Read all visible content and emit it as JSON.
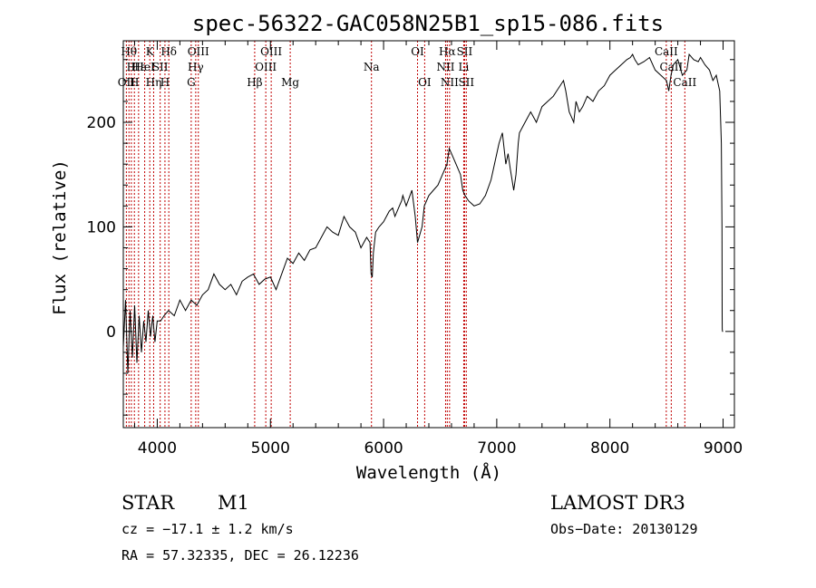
{
  "chart_data": {
    "type": "line",
    "title": "spec-56322-GAC058N25B1_sp15-086.fits",
    "xlabel": "Wavelength (Å)",
    "ylabel": "Flux (relative)",
    "xlim": [
      3700,
      9100
    ],
    "ylim": [
      -92,
      278
    ],
    "xticks": [
      4000,
      5000,
      6000,
      7000,
      8000,
      9000
    ],
    "yticks": [
      0,
      100,
      200
    ],
    "series": [
      {
        "name": "flux",
        "x": [
          3700,
          3720,
          3740,
          3760,
          3780,
          3800,
          3820,
          3840,
          3860,
          3880,
          3900,
          3920,
          3940,
          3960,
          3980,
          4000,
          4030,
          4060,
          4100,
          4150,
          4200,
          4250,
          4300,
          4350,
          4400,
          4450,
          4500,
          4550,
          4600,
          4650,
          4700,
          4750,
          4800,
          4850,
          4900,
          4950,
          5000,
          5050,
          5100,
          5150,
          5200,
          5250,
          5300,
          5350,
          5400,
          5450,
          5500,
          5550,
          5600,
          5650,
          5700,
          5750,
          5800,
          5850,
          5880,
          5890,
          5900,
          5910,
          5930,
          5960,
          6000,
          6050,
          6080,
          6100,
          6140,
          6160,
          6170,
          6200,
          6250,
          6280,
          6300,
          6340,
          6360,
          6400,
          6440,
          6480,
          6520,
          6560,
          6580,
          6600,
          6640,
          6680,
          6700,
          6720,
          6750,
          6800,
          6850,
          6900,
          6950,
          7000,
          7020,
          7050,
          7080,
          7100,
          7120,
          7150,
          7170,
          7190,
          7200,
          7250,
          7300,
          7350,
          7400,
          7450,
          7500,
          7530,
          7560,
          7590,
          7610,
          7640,
          7660,
          7680,
          7700,
          7730,
          7760,
          7800,
          7850,
          7900,
          7950,
          8000,
          8050,
          8100,
          8150,
          8180,
          8200,
          8220,
          8250,
          8300,
          8350,
          8400,
          8450,
          8500,
          8520,
          8540,
          8560,
          8600,
          8640,
          8680,
          8700,
          8740,
          8780,
          8800,
          8840,
          8880,
          8910,
          8940,
          8970,
          8985,
          8990,
          8992,
          8993,
          8995,
          9000
        ],
        "values": [
          -15,
          30,
          -40,
          20,
          -25,
          25,
          -30,
          15,
          -20,
          10,
          -10,
          20,
          -5,
          15,
          -10,
          10,
          10,
          15,
          20,
          15,
          30,
          20,
          30,
          25,
          35,
          40,
          55,
          45,
          40,
          45,
          35,
          48,
          52,
          55,
          45,
          50,
          52,
          40,
          55,
          70,
          65,
          75,
          68,
          78,
          80,
          90,
          100,
          95,
          92,
          110,
          100,
          95,
          80,
          90,
          85,
          55,
          52,
          75,
          95,
          100,
          105,
          115,
          118,
          110,
          120,
          125,
          130,
          120,
          135,
          110,
          85,
          100,
          120,
          130,
          135,
          140,
          150,
          160,
          175,
          170,
          160,
          150,
          135,
          130,
          125,
          120,
          122,
          130,
          145,
          170,
          180,
          190,
          160,
          170,
          155,
          135,
          150,
          180,
          190,
          200,
          210,
          200,
          215,
          220,
          225,
          230,
          235,
          240,
          230,
          210,
          205,
          200,
          220,
          210,
          215,
          225,
          220,
          230,
          235,
          245,
          250,
          255,
          260,
          262,
          265,
          260,
          255,
          258,
          262,
          250,
          245,
          240,
          230,
          245,
          255,
          260,
          245,
          250,
          265,
          260,
          258,
          262,
          255,
          250,
          240,
          245,
          230,
          180,
          100,
          15,
          2,
          0,
          0
        ],
        "color": "#000000"
      }
    ],
    "line_markers": [
      {
        "wavelength": 3727,
        "top": "OII",
        "bottom": "OII",
        "row": 2
      },
      {
        "wavelength": 3750,
        "top": "Hθ",
        "row": 0
      },
      {
        "wavelength": 3771,
        "top": "H",
        "row": 1
      },
      {
        "wavelength": 3798,
        "top": "H",
        "row": 2
      },
      {
        "wavelength": 3835,
        "top": "Hε",
        "row": 1
      },
      {
        "wavelength": 3889,
        "top": "HeI",
        "row": 1
      },
      {
        "wavelength": 3934,
        "top": "K",
        "row": 0
      },
      {
        "wavelength": 3968,
        "top": "Hη",
        "row": 2
      },
      {
        "wavelength": 4026,
        "top": "SII",
        "row": 1
      },
      {
        "wavelength": 4068,
        "top": "H",
        "row": 2
      },
      {
        "wavelength": 4102,
        "top": "Hδ",
        "row": 0
      },
      {
        "wavelength": 4300,
        "top": "G",
        "row": 2
      },
      {
        "wavelength": 4340,
        "top": "Hγ",
        "row": 1
      },
      {
        "wavelength": 4363,
        "top": "OIII",
        "row": 0
      },
      {
        "wavelength": 4861,
        "top": "Hβ",
        "row": 2
      },
      {
        "wavelength": 4959,
        "top": "OIII",
        "row": 1
      },
      {
        "wavelength": 5007,
        "top": "OIII",
        "row": 0
      },
      {
        "wavelength": 5175,
        "top": "Mg",
        "row": 2
      },
      {
        "wavelength": 5893,
        "top": "Na",
        "row": 1
      },
      {
        "wavelength": 6300,
        "top": "OI",
        "row": 0
      },
      {
        "wavelength": 6363,
        "top": "OI",
        "row": 2
      },
      {
        "wavelength": 6548,
        "top": "NII",
        "row": 1
      },
      {
        "wavelength": 6563,
        "top": "Hα",
        "row": 0
      },
      {
        "wavelength": 6583,
        "top": "NII",
        "row": 2
      },
      {
        "wavelength": 6708,
        "top": "Li",
        "row": 1
      },
      {
        "wavelength": 6716,
        "top": "SII",
        "row": 0
      },
      {
        "wavelength": 6731,
        "top": "SII",
        "row": 2
      },
      {
        "wavelength": 8498,
        "top": "CaII",
        "row": 0
      },
      {
        "wavelength": 8542,
        "top": "CaII",
        "row": 1
      },
      {
        "wavelength": 8662,
        "top": "CaII",
        "row": 2
      }
    ]
  },
  "info": {
    "object_type": "STAR",
    "subclass": "M1",
    "survey": "LAMOST DR3",
    "cz": "cz = −17.1 ± 1.2 km/s",
    "obs_date": "Obs−Date: 20130129",
    "coords": "RA =  57.32335, DEC =  26.12236"
  }
}
